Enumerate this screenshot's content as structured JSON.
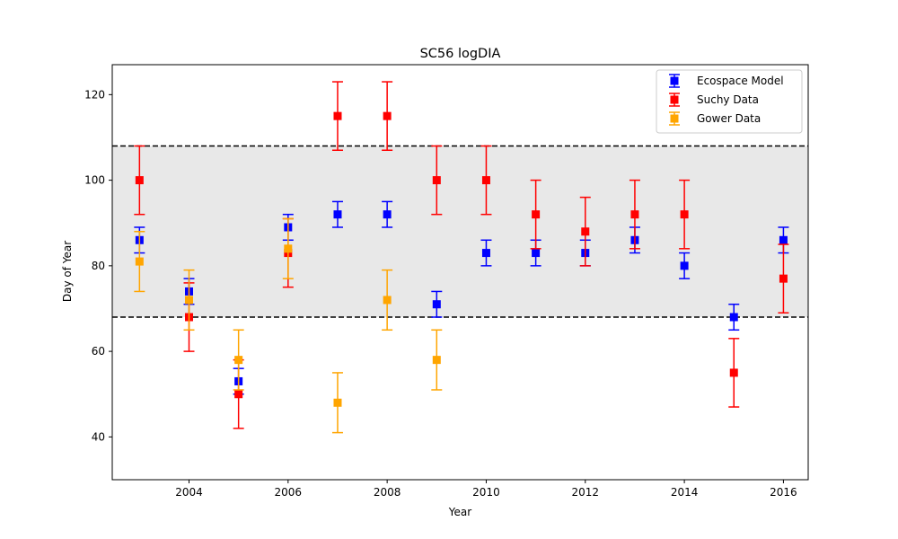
{
  "chart_data": {
    "type": "scatter",
    "title": "SC56 logDIA",
    "xlabel": "Year",
    "ylabel": "Day of Year",
    "xlim": [
      2002.45,
      2016.5
    ],
    "ylim": [
      30,
      127
    ],
    "xticks": [
      2004,
      2006,
      2008,
      2010,
      2012,
      2014,
      2016
    ],
    "yticks": [
      40,
      60,
      80,
      100,
      120
    ],
    "grid": false,
    "legend_position": "top-right",
    "band": {
      "ymin": 68,
      "ymax": 108,
      "color": "#e8e8e8",
      "line_style": "dashed",
      "line_color": "#000000"
    },
    "series": [
      {
        "name": "Ecospace Model",
        "color": "#0000ff",
        "marker": "square",
        "x": [
          2003,
          2004,
          2005,
          2006,
          2007,
          2008,
          2009,
          2010,
          2011,
          2012,
          2013,
          2014,
          2015,
          2016
        ],
        "y": [
          86,
          74,
          53,
          89,
          92,
          92,
          71,
          83,
          83,
          83,
          86,
          80,
          68,
          86
        ],
        "err": [
          3,
          3,
          3,
          3,
          3,
          3,
          3,
          3,
          3,
          3,
          3,
          3,
          3,
          3
        ]
      },
      {
        "name": "Suchy Data",
        "color": "#ff0000",
        "marker": "square",
        "x": [
          2003,
          2004,
          2005,
          2006,
          2007,
          2008,
          2009,
          2010,
          2011,
          2012,
          2013,
          2014,
          2015,
          2016
        ],
        "y": [
          100,
          68,
          50,
          83,
          115,
          115,
          100,
          100,
          92,
          88,
          92,
          92,
          55,
          77
        ],
        "err": [
          8,
          8,
          8,
          8,
          8,
          8,
          8,
          8,
          8,
          8,
          8,
          8,
          8,
          8
        ]
      },
      {
        "name": "Gower Data",
        "color": "#ffa500",
        "marker": "square",
        "x": [
          2003,
          2004,
          2005,
          2006,
          2007,
          2008,
          2009
        ],
        "y": [
          81,
          72,
          58,
          84,
          48,
          72,
          58
        ],
        "err": [
          7,
          7,
          7,
          7,
          7,
          7,
          7
        ]
      }
    ]
  }
}
